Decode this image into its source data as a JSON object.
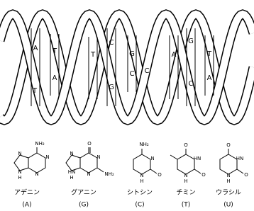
{
  "helix_labels": [
    "A",
    "T",
    "T",
    "A",
    "T",
    "C",
    "G",
    "G",
    "C",
    "C",
    "A",
    "G",
    "C",
    "T",
    "A"
  ],
  "molecules": [
    {
      "name": "アデニン",
      "code": "(A)",
      "atoms": [
        "NH₂",
        "N",
        "N",
        "N",
        "N",
        "H"
      ]
    },
    {
      "name": "グアニン",
      "code": "(G)",
      "atoms": [
        "O",
        "N",
        "HN",
        "N",
        "N",
        "H",
        "NH₂"
      ]
    },
    {
      "name": "シトシン",
      "code": "(C)",
      "atoms": [
        "NH₂",
        "N",
        "N",
        "H",
        "O"
      ]
    },
    {
      "name": "チミン",
      "code": "(T)",
      "atoms": [
        "O",
        "HN",
        "N",
        "H",
        "O"
      ]
    },
    {
      "name": "ウラシル",
      "code": "(U)",
      "atoms": [
        "O",
        "HN",
        "N",
        "H",
        "O"
      ]
    }
  ]
}
